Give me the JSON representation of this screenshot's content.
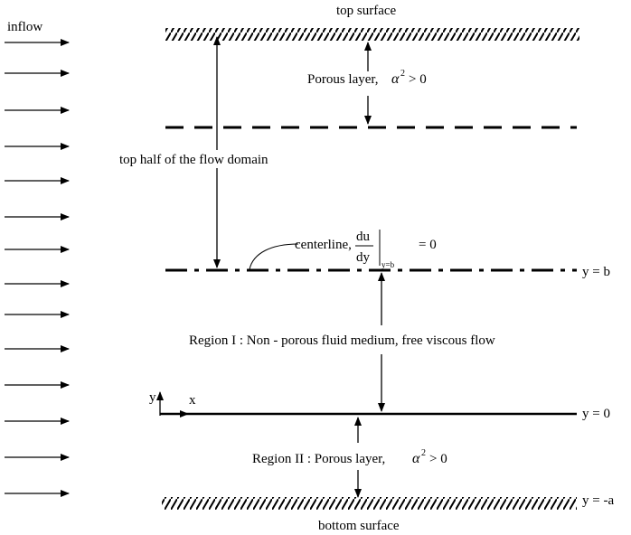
{
  "labels": {
    "inflow": "inflow",
    "top_surface": "top surface",
    "bottom_surface": "bottom surface",
    "top_half": "top half of the flow domain",
    "porous_top_text": "Porous layer,",
    "region1": "Region I : Non - porous fluid medium, free viscous flow",
    "region2_text": "Region II : Porous layer,",
    "centerline_text": "centerline,",
    "du": "du",
    "dy": "dy",
    "y_eq_b_sub": "y=b",
    "eq_zero": "=  0",
    "alpha": "α",
    "sup2": "2",
    "gt_zero": "> 0",
    "y_b": "y = b",
    "y_0": "y = 0",
    "y_neg_a": "y = -a",
    "axis_y": "y",
    "axis_x": "x"
  },
  "colors": {
    "stroke": "#000000",
    "background": "#ffffff"
  }
}
